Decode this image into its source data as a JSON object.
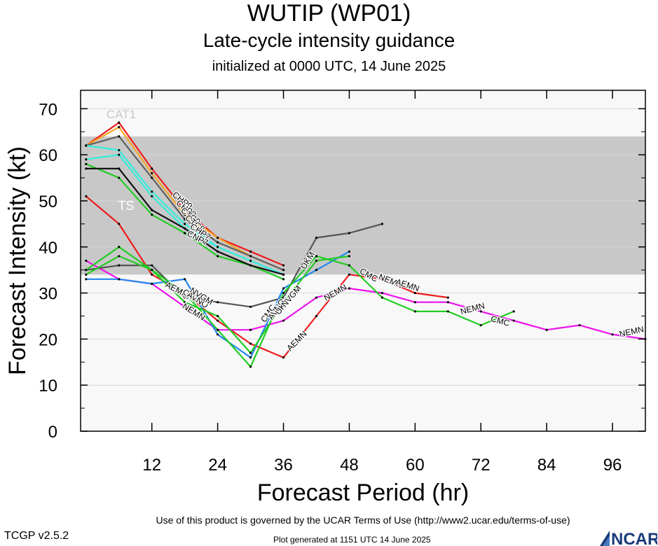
{
  "header": {
    "title": "WUTIP (WP01)",
    "subtitle": "Late-cycle intensity guidance",
    "initialized": "initialized at 0000 UTC, 14 June 2025"
  },
  "footer": {
    "terms": "Use of this product is governed by the UCAR Terms of Use (http://www2.ucar.edu/terms-of-use)",
    "version": "TCGP v2.5.2",
    "generated": "Plot generated at 1151 UTC   14 June 2025",
    "logo_text": "NCAR"
  },
  "chart_data": {
    "type": "line",
    "title": "WUTIP (WP01)",
    "xlabel": "Forecast Period (hr)",
    "ylabel": "Forecast Intensity (kt)",
    "xlim": [
      -1,
      102
    ],
    "ylim": [
      0,
      74
    ],
    "xticks": [
      12,
      24,
      36,
      48,
      60,
      72,
      84,
      96
    ],
    "yticks": [
      0,
      10,
      20,
      30,
      40,
      50,
      60,
      70
    ],
    "bands": [
      {
        "label": "TS",
        "from": 34,
        "to": 64,
        "color": "#c8c8c8"
      },
      {
        "label": "CAT1",
        "from": 64,
        "to": 74,
        "color": "#f8f8f8"
      }
    ],
    "below_band_color": "#f8f8f8",
    "series": [
      {
        "name": "CHP9",
        "color": "#ee1c1c",
        "points": [
          [
            0,
            62
          ],
          [
            6,
            67
          ],
          [
            12,
            57
          ],
          [
            18,
            48
          ],
          [
            24,
            42
          ],
          [
            30,
            39
          ],
          [
            36,
            36
          ]
        ]
      },
      {
        "name": "CHP8",
        "color": "#f5a623",
        "points": [
          [
            0,
            62
          ],
          [
            6,
            66
          ],
          [
            12,
            56
          ],
          [
            18,
            47
          ],
          [
            24,
            42
          ],
          [
            30,
            38
          ],
          [
            36,
            35
          ]
        ]
      },
      {
        "name": "CTC9",
        "color": "#606060",
        "points": [
          [
            0,
            62
          ],
          [
            6,
            64
          ],
          [
            12,
            55
          ],
          [
            18,
            46
          ],
          [
            24,
            41
          ],
          [
            30,
            38
          ],
          [
            36,
            35
          ]
        ]
      },
      {
        "name": "CTC8",
        "color": "#33eedd",
        "points": [
          [
            0,
            62
          ],
          [
            6,
            61
          ],
          [
            12,
            52
          ],
          [
            18,
            45
          ],
          [
            24,
            40
          ],
          [
            30,
            37
          ],
          [
            36,
            34
          ]
        ]
      },
      {
        "name": "CHP7",
        "color": "#33eedd",
        "points": [
          [
            0,
            59
          ],
          [
            6,
            60
          ],
          [
            12,
            51
          ],
          [
            18,
            44
          ],
          [
            24,
            40
          ],
          [
            30,
            37
          ],
          [
            36,
            34
          ]
        ]
      },
      {
        "name": "CNP7",
        "color": "#22cc22",
        "points": [
          [
            0,
            58
          ],
          [
            6,
            55
          ],
          [
            12,
            47
          ],
          [
            18,
            43
          ],
          [
            24,
            38
          ],
          [
            30,
            36
          ],
          [
            36,
            33
          ]
        ]
      },
      {
        "name": "CNP8",
        "color": "#111111",
        "points": [
          [
            0,
            57
          ],
          [
            6,
            57
          ],
          [
            12,
            48
          ],
          [
            18,
            44
          ],
          [
            24,
            39
          ],
          [
            30,
            36
          ],
          [
            36,
            34
          ]
        ]
      },
      {
        "name": "AEMN",
        "color": "#ee1c1c",
        "points": [
          [
            0,
            51
          ],
          [
            6,
            45
          ],
          [
            12,
            34
          ],
          [
            18,
            30
          ],
          [
            24,
            24
          ],
          [
            30,
            19
          ],
          [
            36,
            16
          ],
          [
            42,
            25
          ],
          [
            48,
            34
          ],
          [
            54,
            33
          ],
          [
            60,
            30
          ],
          [
            66,
            29
          ]
        ]
      },
      {
        "name": "NEMN",
        "color": "#ee11ee",
        "points": [
          [
            0,
            37
          ],
          [
            6,
            33
          ],
          [
            12,
            32
          ],
          [
            18,
            27
          ],
          [
            24,
            22
          ],
          [
            30,
            22
          ],
          [
            36,
            24
          ],
          [
            42,
            29
          ],
          [
            48,
            31
          ],
          [
            54,
            30
          ],
          [
            60,
            28
          ],
          [
            66,
            28
          ],
          [
            72,
            26
          ],
          [
            78,
            24
          ],
          [
            84,
            22
          ],
          [
            90,
            23
          ],
          [
            96,
            21
          ],
          [
            102,
            20
          ]
        ]
      },
      {
        "name": "UKM",
        "color": "#555555",
        "points": [
          [
            0,
            35
          ],
          [
            6,
            36
          ],
          [
            12,
            36
          ],
          [
            18,
            29
          ],
          [
            24,
            28
          ],
          [
            30,
            27
          ],
          [
            36,
            29
          ],
          [
            42,
            42
          ],
          [
            48,
            43
          ],
          [
            54,
            45
          ]
        ]
      },
      {
        "name": "NVGM",
        "color": "#2288ee",
        "points": [
          [
            0,
            33
          ],
          [
            6,
            33
          ],
          [
            12,
            32
          ],
          [
            18,
            33
          ],
          [
            24,
            21
          ],
          [
            30,
            16
          ],
          [
            36,
            31
          ],
          [
            42,
            35
          ],
          [
            48,
            39
          ]
        ]
      },
      {
        "name": "CMC",
        "color": "#22cc22",
        "points": [
          [
            0,
            35
          ],
          [
            6,
            40
          ],
          [
            12,
            35
          ],
          [
            18,
            30
          ],
          [
            24,
            22
          ],
          [
            30,
            14
          ],
          [
            36,
            30
          ],
          [
            42,
            38
          ],
          [
            48,
            36
          ],
          [
            54,
            29
          ],
          [
            60,
            26
          ],
          [
            66,
            26
          ],
          [
            72,
            23
          ],
          [
            78,
            26
          ]
        ]
      },
      {
        "name": "AVNO",
        "color": "#22cc22",
        "points": [
          [
            0,
            34
          ],
          [
            6,
            38
          ],
          [
            12,
            35
          ],
          [
            18,
            28
          ],
          [
            24,
            25
          ],
          [
            30,
            17
          ],
          [
            36,
            28
          ],
          [
            42,
            37
          ],
          [
            48,
            38
          ]
        ]
      }
    ],
    "labels": [
      {
        "text": "CHP9",
        "x": 17.5,
        "y": 50,
        "angle": 38
      },
      {
        "text": "CHP8",
        "x": 18.2,
        "y": 48.2,
        "angle": 38
      },
      {
        "text": "CTC9",
        "x": 19,
        "y": 46.6,
        "angle": 38
      },
      {
        "text": "CTC8",
        "x": 19.8,
        "y": 45,
        "angle": 38
      },
      {
        "text": "CHP7",
        "x": 20.8,
        "y": 43.2,
        "angle": 34
      },
      {
        "text": "CNP7",
        "x": 20.3,
        "y": 41.8,
        "angle": 28
      },
      {
        "text": "AEMN",
        "x": 16.5,
        "y": 30.6,
        "angle": 28
      },
      {
        "text": "NEMN",
        "x": 19.6,
        "y": 25.8,
        "angle": 32
      },
      {
        "text": "CMC",
        "x": 19.2,
        "y": 29.2,
        "angle": 32
      },
      {
        "text": "AVNO",
        "x": 20.3,
        "y": 28.4,
        "angle": 32
      },
      {
        "text": "NVGM",
        "x": 21,
        "y": 29.2,
        "angle": 32
      },
      {
        "text": "CMC",
        "x": 33.3,
        "y": 25.5,
        "angle": -55
      },
      {
        "text": "AVNO",
        "x": 34.8,
        "y": 26.4,
        "angle": -55
      },
      {
        "text": "UKM",
        "x": 35.9,
        "y": 27.1,
        "angle": -55
      },
      {
        "text": "NVGM",
        "x": 37.5,
        "y": 29.2,
        "angle": -50
      },
      {
        "text": "UKM",
        "x": 40.5,
        "y": 37,
        "angle": -58
      },
      {
        "text": "AEMN",
        "x": 38.5,
        "y": 19.5,
        "angle": -45
      },
      {
        "text": "NEMN",
        "x": 45.5,
        "y": 30,
        "angle": -30
      },
      {
        "text": "CMC",
        "x": 51.5,
        "y": 33.8,
        "angle": 30
      },
      {
        "text": "NEMN",
        "x": 55.5,
        "y": 32.5,
        "angle": 22
      },
      {
        "text": "AEMN",
        "x": 58.6,
        "y": 31.6,
        "angle": 18
      },
      {
        "text": "NEMN",
        "x": 70.5,
        "y": 26.5,
        "angle": -15
      },
      {
        "text": "CMC",
        "x": 75.5,
        "y": 23.8,
        "angle": 15
      },
      {
        "text": "NEMN",
        "x": 99.5,
        "y": 21.5,
        "angle": -12
      }
    ]
  }
}
